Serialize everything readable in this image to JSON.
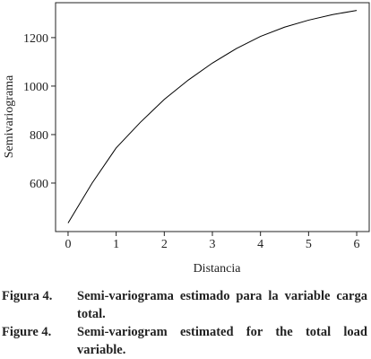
{
  "chart_data": {
    "type": "line",
    "xlabel": "Distancia",
    "ylabel": "Semivariograma",
    "x": [
      0,
      0.5,
      1,
      1.5,
      2,
      2.5,
      3,
      3.5,
      4,
      4.5,
      5,
      5.5,
      6
    ],
    "series": [
      {
        "name": null,
        "color": "#000000",
        "values": [
          435,
          600,
          745,
          850,
          945,
          1025,
          1095,
          1155,
          1205,
          1243,
          1272,
          1295,
          1312
        ]
      }
    ],
    "xlim": [
      -0.26,
      6.26
    ],
    "xticks": [
      0,
      1,
      2,
      3,
      4,
      5,
      6
    ],
    "ylim": [
      400,
      1344
    ],
    "yticks": [
      600,
      800,
      1000,
      1200
    ],
    "grid": false
  },
  "captions": [
    {
      "label": "Figura 4.",
      "text": "Semi-variograma estimado para la variable carga total."
    },
    {
      "label": "Figure 4.",
      "text": "Semi-variogram estimated for the total load variable."
    }
  ]
}
